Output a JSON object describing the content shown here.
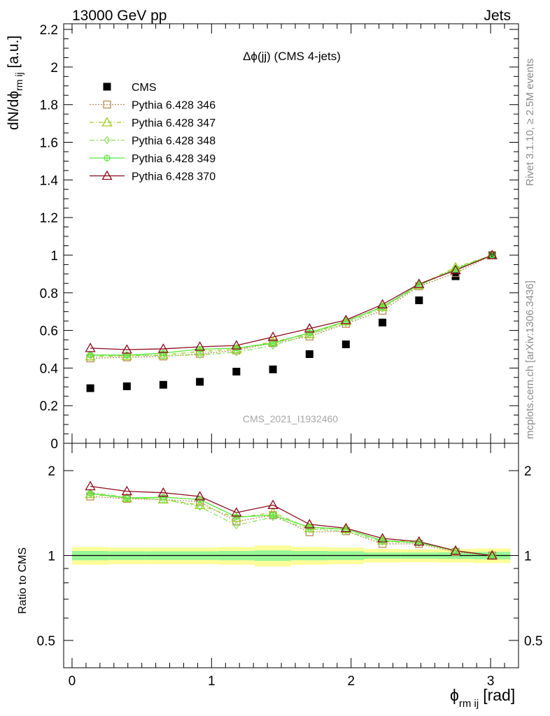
{
  "header": {
    "left": "13000 GeV pp",
    "right": "Jets"
  },
  "side_text": {
    "rivet": "Rivet 3.1.10, ≥ 2.5M events",
    "mcplots": "mcplots.cern.ch [arXiv:1306.3436]"
  },
  "watermark": "CMS_2021_I1932460",
  "colors": {
    "cms": "#000000",
    "p346": "#b88c5a",
    "p347": "#9ccc1a",
    "p348": "#8ee060",
    "p349": "#55e63a",
    "p370": "#8b0a1e",
    "band_outer": "#fdfd9a",
    "band_inner": "#97f797"
  },
  "chart_data": [
    {
      "type": "scatter",
      "title": "Δϕ(jj) (CMS 4-jets)",
      "ylabel": "dN/dϕ",
      "ylabel_sub": "rm ij",
      "ylabel_unit": "[a.u.]",
      "xlim": [
        -0.06,
        3.2
      ],
      "ylim": [
        0,
        2.23
      ],
      "y_ticks": [
        "0",
        "0.2",
        "0.4",
        "0.6",
        "0.8",
        "1",
        "1.2",
        "1.4",
        "1.6",
        "1.8",
        "2",
        "2.2"
      ],
      "x": [
        0.131,
        0.393,
        0.654,
        0.916,
        1.178,
        1.44,
        1.702,
        1.963,
        2.225,
        2.487,
        2.749,
        3.011
      ],
      "series": [
        {
          "name": "CMS",
          "marker": "square",
          "values": [
            0.293,
            0.303,
            0.311,
            0.327,
            0.381,
            0.393,
            0.474,
            0.526,
            0.642,
            0.76,
            0.888,
            1.0
          ]
        },
        {
          "name": "Pythia 6.428 346",
          "marker": "open-square",
          "values": [
            0.452,
            0.457,
            0.462,
            0.476,
            0.494,
            0.533,
            0.568,
            0.635,
            0.705,
            0.835,
            0.905,
            1.0
          ]
        },
        {
          "name": "Pythia 6.428 347",
          "marker": "open-triangle",
          "values": [
            0.462,
            0.464,
            0.47,
            0.488,
            0.5,
            0.54,
            0.58,
            0.648,
            0.724,
            0.842,
            0.935,
            1.0
          ]
        },
        {
          "name": "Pythia 6.428 348",
          "marker": "open-diamond",
          "values": [
            0.47,
            0.47,
            0.466,
            0.47,
            0.484,
            0.52,
            0.578,
            0.64,
            0.718,
            0.838,
            0.93,
            1.0
          ]
        },
        {
          "name": "Pythia 6.428 349",
          "marker": "crossed-circle",
          "values": [
            0.469,
            0.468,
            0.48,
            0.5,
            0.506,
            0.532,
            0.588,
            0.648,
            0.726,
            0.842,
            0.925,
            1.0
          ]
        },
        {
          "name": "Pythia 6.428 370",
          "marker": "open-triangle",
          "values": [
            0.506,
            0.498,
            0.502,
            0.513,
            0.52,
            0.565,
            0.61,
            0.655,
            0.738,
            0.847,
            0.92,
            1.0
          ]
        }
      ]
    },
    {
      "type": "line",
      "ylabel": "Ratio to CMS",
      "xlabel": "ϕ",
      "xlabel_sub": "rm ij",
      "xlabel_unit": "[rad]",
      "xlim": [
        -0.06,
        3.2
      ],
      "ylim": [
        0.4,
        2.5
      ],
      "y_scale": "log",
      "y_ticks": [
        "0.5",
        "1",
        "2"
      ],
      "x_ticks": [
        "0",
        "1",
        "2",
        "3"
      ],
      "x": [
        0.131,
        0.393,
        0.654,
        0.916,
        1.178,
        1.44,
        1.702,
        1.963,
        2.225,
        2.487,
        2.749,
        3.011
      ],
      "band_edges": [
        0.0,
        0.262,
        0.524,
        0.785,
        1.047,
        1.309,
        1.571,
        1.833,
        2.094,
        2.356,
        2.618,
        2.88,
        3.142
      ],
      "band_outer": [
        0.073,
        0.068,
        0.068,
        0.068,
        0.072,
        0.085,
        0.073,
        0.068,
        0.055,
        0.052,
        0.055,
        0.06
      ],
      "band_inner": [
        0.038,
        0.035,
        0.035,
        0.035,
        0.038,
        0.043,
        0.038,
        0.035,
        0.025,
        0.025,
        0.027,
        0.03
      ],
      "series": [
        {
          "name": "Pythia 6.428 346",
          "values": [
            1.62,
            1.59,
            1.58,
            1.55,
            1.32,
            1.39,
            1.21,
            1.22,
            1.1,
            1.1,
            1.03,
            1.0
          ]
        },
        {
          "name": "Pythia 6.428 347",
          "values": [
            1.65,
            1.6,
            1.58,
            1.51,
            1.36,
            1.42,
            1.25,
            1.24,
            1.13,
            1.12,
            1.04,
            1.0
          ]
        },
        {
          "name": "Pythia 6.428 348",
          "values": [
            1.67,
            1.61,
            1.58,
            1.49,
            1.28,
            1.37,
            1.24,
            1.22,
            1.12,
            1.11,
            1.04,
            1.0
          ]
        },
        {
          "name": "Pythia 6.428 349",
          "values": [
            1.66,
            1.6,
            1.61,
            1.58,
            1.37,
            1.39,
            1.26,
            1.24,
            1.13,
            1.11,
            1.04,
            1.0
          ]
        },
        {
          "name": "Pythia 6.428 370",
          "values": [
            1.76,
            1.69,
            1.67,
            1.62,
            1.42,
            1.51,
            1.29,
            1.25,
            1.15,
            1.12,
            1.04,
            1.0
          ]
        }
      ]
    }
  ]
}
